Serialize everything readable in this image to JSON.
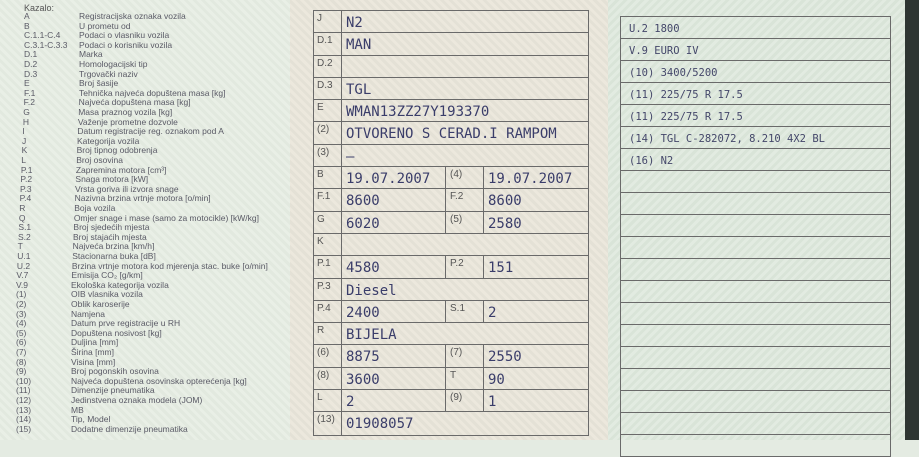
{
  "legend": {
    "title": "Kazalo:",
    "items": [
      [
        "A",
        "Registracijska oznaka vozila"
      ],
      [
        "B",
        "U prometu od"
      ],
      [
        "C.1.1-C.4",
        "Podaci o vlasniku vozila"
      ],
      [
        "C.3.1-C.3.3",
        "Podaci o korisniku vozila"
      ],
      [
        "D.1",
        "Marka"
      ],
      [
        "D.2",
        "Homologacijski tip"
      ],
      [
        "D.3",
        "Trgovački naziv"
      ],
      [
        "E",
        "Broj šasije"
      ],
      [
        "F.1",
        "Tehnička najveća dopuštena masa [kg]"
      ],
      [
        "F.2",
        "Najveća dopuštena masa [kg]"
      ],
      [
        "G",
        "Masa praznog vozila [kg]"
      ],
      [
        "H",
        "Važenje prometne dozvole"
      ],
      [
        "I",
        "Datum registracije reg. oznakom pod A"
      ],
      [
        "J",
        "Kategorija vozila"
      ],
      [
        "K",
        "Broj tipnog odobrenja"
      ],
      [
        "L",
        "Broj osovina"
      ],
      [
        "P.1",
        "Zapremina motora [cm³]"
      ],
      [
        "P.2",
        "Snaga motora [kW]"
      ],
      [
        "P.3",
        "Vrsta goriva ili izvora snage"
      ],
      [
        "P.4",
        "Nazivna brzina vrtnje motora [o/min]"
      ],
      [
        "R",
        "Boja vozila"
      ],
      [
        "Q",
        "Omjer snage i mase (samo za motocikle) [kW/kg]"
      ],
      [
        "S.1",
        "Broj sjedećih mjesta"
      ],
      [
        "S.2",
        "Broj stajaćih mjesta"
      ],
      [
        "T",
        "Najveća brzina [km/h]"
      ],
      [
        "U.1",
        "Stacionarna buka [dB]"
      ],
      [
        "U.2",
        "Brzina vrtnje motora kod mjerenja stac. buke [o/min]"
      ],
      [
        "V.7",
        "Emisija CO₂ [g/km]"
      ],
      [
        "V.9",
        "Ekološka kategorija vozila"
      ],
      [
        "(1)",
        "OIB vlasnika vozila"
      ],
      [
        "(2)",
        "Oblik karoserije"
      ],
      [
        "(3)",
        "Namjena"
      ],
      [
        "(4)",
        "Datum prve registracije u RH"
      ],
      [
        "(5)",
        "Dopuštena nosivost [kg]"
      ],
      [
        "(6)",
        "Duljina [mm]"
      ],
      [
        "(7)",
        "Širina [mm]"
      ],
      [
        "(8)",
        "Visina [mm]"
      ],
      [
        "(9)",
        "Broj pogonskih osovina"
      ],
      [
        "(10)",
        "Najveća dopuštena osovinska opterećenja [kg]"
      ],
      [
        "(11)",
        "Dimenzije pneumatika"
      ],
      [
        "(12)",
        "Jedinstvena oznaka modela (JOM)"
      ],
      [
        "(13)",
        "MB"
      ],
      [
        "(14)",
        "Tip, Model"
      ],
      [
        "(15)",
        "Dodatne dimenzije pneumatika"
      ]
    ]
  },
  "table": [
    {
      "label": "J",
      "value": "N2"
    },
    {
      "label": "D.1",
      "value": "MAN"
    },
    {
      "label": "D.2",
      "value": ""
    },
    {
      "label": "D.3",
      "value": "TGL"
    },
    {
      "label": "E",
      "value": "WMAN13ZZ27Y193370"
    },
    {
      "label": "(2)",
      "value": "OTVORENO S CERAD.I RAMPOM"
    },
    {
      "label": "(3)",
      "value": "–"
    },
    {
      "label": "B",
      "value": "19.07.2007",
      "label2": "(4)",
      "value2": "19.07.2007"
    },
    {
      "label": "F.1",
      "value": "8600",
      "label2": "F.2",
      "value2": "8600"
    },
    {
      "label": "G",
      "value": "6020",
      "label2": "(5)",
      "value2": "2580"
    },
    {
      "label": "K",
      "value": ""
    },
    {
      "label": "P.1",
      "value": "4580",
      "label2": "P.2",
      "value2": "151"
    },
    {
      "label": "P.3",
      "value": "Diesel"
    },
    {
      "label": "P.4",
      "value": "2400",
      "label2": "S.1",
      "value2": "2"
    },
    {
      "label": "R",
      "value": "BIJELA"
    },
    {
      "label": "(6)",
      "value": "8875",
      "label2": "(7)",
      "value2": "2550"
    },
    {
      "label": "(8)",
      "value": "3600",
      "label2": "T",
      "value2": "90"
    },
    {
      "label": "L",
      "value": "2",
      "label2": "(9)",
      "value2": "1"
    },
    {
      "label": "(13)",
      "value": "01908057"
    }
  ],
  "additional": [
    "U.2 1800",
    "V.9 EURO IV",
    "(10) 3400/5200",
    "(11) 225/75 R 17.5",
    "(11) 225/75 R 17.5",
    "(14) TGL C-282072, 8.210 4X2 BL",
    "(16) N2",
    "",
    "",
    "",
    "",
    "",
    "",
    "",
    "",
    "",
    "",
    "",
    "",
    ""
  ]
}
